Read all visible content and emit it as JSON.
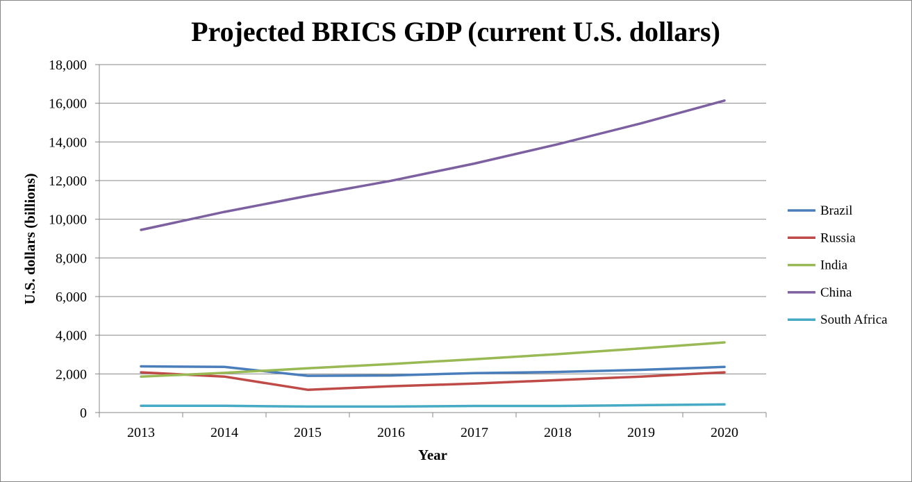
{
  "chart_data": {
    "type": "line",
    "title": "Projected BRICS GDP (current U.S. dollars)",
    "xlabel": "Year",
    "ylabel": "U.S. dollars (billions)",
    "categories": [
      "2013",
      "2014",
      "2015",
      "2016",
      "2017",
      "2018",
      "2019",
      "2020"
    ],
    "y_ticks": [
      "0",
      "2,000",
      "4,000",
      "6,000",
      "8,000",
      "10,000",
      "12,000",
      "14,000",
      "16,000",
      "18,000"
    ],
    "ylim": [
      0,
      18000
    ],
    "grid": true,
    "legend_position": "right",
    "series": [
      {
        "name": "Brazil",
        "color": "#4a7ebb",
        "values": [
          2390,
          2360,
          1900,
          1920,
          2040,
          2100,
          2210,
          2360
        ]
      },
      {
        "name": "Russia",
        "color": "#be4b48",
        "values": [
          2080,
          1860,
          1180,
          1360,
          1500,
          1680,
          1860,
          2080
        ]
      },
      {
        "name": "India",
        "color": "#98b954",
        "values": [
          1860,
          2050,
          2290,
          2510,
          2760,
          3020,
          3320,
          3630
        ]
      },
      {
        "name": "China",
        "color": "#7d60a0",
        "values": [
          9450,
          10380,
          11210,
          11990,
          12880,
          13880,
          14960,
          16140
        ]
      },
      {
        "name": "South Africa",
        "color": "#46aac5",
        "values": [
          350,
          350,
          310,
          310,
          340,
          340,
          380,
          420
        ]
      }
    ]
  }
}
